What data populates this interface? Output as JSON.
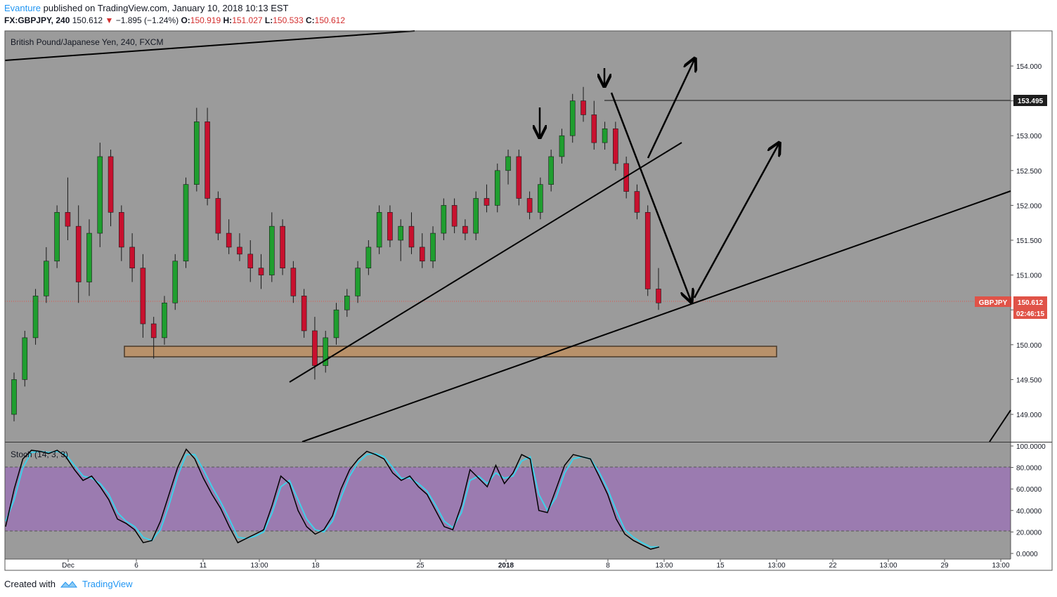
{
  "header": {
    "author": "Evanture",
    "published_text": " published on TradingView.com, January 10, 2018 10:13 EST",
    "symbol": "FX:GBPJPY, 240",
    "last": "150.612",
    "change_arrow": "▼",
    "change": "−1.895 (−1.24%)",
    "o_label": "O:",
    "o_value": "150.919",
    "h_label": "H:",
    "h_value": "151.027",
    "l_label": "L:",
    "l_value": "150.533",
    "c_label": "C:",
    "c_value": "150.612"
  },
  "footer": {
    "created_with": "Created with",
    "brand": "TradingView"
  },
  "colors": {
    "background": "#9b9b9b",
    "up": "#1f9e2f",
    "down": "#c8102e",
    "stoch_band": "#9b7bb0",
    "stoch_k": "#000000",
    "stoch_d": "#3fd0e8",
    "support_zone": "#b8916a",
    "price_tag": "#e05348"
  },
  "chart_data": [
    {
      "type": "candlestick",
      "title": "British Pound/Japanese Yen, 240, FXCM",
      "ylim": [
        148.6,
        154.5
      ],
      "y_ticks": [
        "154.000",
        "153.500",
        "153.000",
        "152.500",
        "152.000",
        "151.500",
        "151.000",
        "150.500",
        "150.000",
        "149.500",
        "149.000"
      ],
      "x_ticks": [
        "Dec",
        "6",
        "11",
        "13:00",
        "18",
        "25",
        "2018",
        "8",
        "13:00",
        "15",
        "13:00",
        "22",
        "13:00",
        "29",
        "13:00"
      ],
      "current_price_label": "GBPJPY",
      "current_price": "150.612",
      "countdown": "02:46:15",
      "horizontal_level": "153.495",
      "support_zone": [
        149.8,
        149.95
      ],
      "annotations": [
        "down arrows at swing highs",
        "rising trendlines",
        "projected path arrows"
      ],
      "candles_sampled": [
        [
          149.0,
          149.6,
          148.9,
          149.5
        ],
        [
          149.5,
          150.2,
          149.4,
          150.1
        ],
        [
          150.1,
          150.8,
          150.0,
          150.7
        ],
        [
          150.7,
          151.4,
          150.6,
          151.2
        ],
        [
          151.2,
          152.0,
          151.1,
          151.9
        ],
        [
          151.9,
          152.4,
          151.5,
          151.7
        ],
        [
          151.7,
          152.0,
          150.6,
          150.9
        ],
        [
          150.9,
          151.8,
          150.7,
          151.6
        ],
        [
          151.6,
          152.9,
          151.4,
          152.7
        ],
        [
          152.7,
          152.8,
          151.7,
          151.9
        ],
        [
          151.9,
          152.0,
          151.2,
          151.4
        ],
        [
          151.4,
          151.6,
          150.9,
          151.1
        ],
        [
          151.1,
          151.3,
          150.1,
          150.3
        ],
        [
          150.3,
          150.4,
          149.8,
          150.1
        ],
        [
          150.1,
          150.7,
          150.0,
          150.6
        ],
        [
          150.6,
          151.3,
          150.5,
          151.2
        ],
        [
          151.2,
          152.4,
          151.1,
          152.3
        ],
        [
          152.3,
          153.4,
          152.2,
          153.2
        ],
        [
          153.2,
          153.4,
          152.0,
          152.1
        ],
        [
          152.1,
          152.2,
          151.5,
          151.6
        ],
        [
          151.6,
          151.8,
          151.3,
          151.4
        ],
        [
          151.4,
          151.6,
          151.2,
          151.3
        ],
        [
          151.3,
          151.5,
          150.9,
          151.1
        ],
        [
          151.1,
          151.3,
          150.8,
          151.0
        ],
        [
          151.0,
          151.9,
          150.9,
          151.7
        ],
        [
          151.7,
          151.8,
          151.0,
          151.1
        ],
        [
          151.1,
          151.2,
          150.6,
          150.7
        ],
        [
          150.7,
          150.8,
          150.1,
          150.2
        ],
        [
          150.2,
          150.4,
          149.5,
          149.7
        ],
        [
          149.7,
          150.2,
          149.6,
          150.1
        ],
        [
          150.1,
          150.6,
          150.0,
          150.5
        ],
        [
          150.5,
          150.8,
          150.4,
          150.7
        ],
        [
          150.7,
          151.2,
          150.6,
          151.1
        ],
        [
          151.1,
          151.5,
          151.0,
          151.4
        ],
        [
          151.4,
          152.0,
          151.3,
          151.9
        ],
        [
          151.9,
          152.0,
          151.4,
          151.5
        ],
        [
          151.5,
          151.8,
          151.2,
          151.7
        ],
        [
          151.7,
          151.9,
          151.3,
          151.4
        ],
        [
          151.4,
          151.6,
          151.1,
          151.2
        ],
        [
          151.2,
          151.7,
          151.1,
          151.6
        ],
        [
          151.6,
          152.1,
          151.5,
          152.0
        ],
        [
          152.0,
          152.1,
          151.6,
          151.7
        ],
        [
          151.7,
          151.8,
          151.5,
          151.6
        ],
        [
          151.6,
          152.2,
          151.5,
          152.1
        ],
        [
          152.1,
          152.3,
          151.9,
          152.0
        ],
        [
          152.0,
          152.6,
          151.9,
          152.5
        ],
        [
          152.5,
          152.8,
          152.3,
          152.7
        ],
        [
          152.7,
          152.8,
          152.0,
          152.1
        ],
        [
          152.1,
          152.2,
          151.8,
          151.9
        ],
        [
          151.9,
          152.4,
          151.8,
          152.3
        ],
        [
          152.3,
          152.8,
          152.2,
          152.7
        ],
        [
          152.7,
          153.1,
          152.6,
          153.0
        ],
        [
          153.0,
          153.6,
          152.9,
          153.5
        ],
        [
          153.5,
          153.7,
          153.2,
          153.3
        ],
        [
          153.3,
          153.5,
          152.8,
          152.9
        ],
        [
          152.9,
          153.2,
          152.8,
          153.1
        ],
        [
          153.1,
          153.2,
          152.5,
          152.6
        ],
        [
          152.6,
          152.7,
          152.1,
          152.2
        ],
        [
          152.2,
          152.3,
          151.8,
          151.9
        ],
        [
          151.9,
          152.0,
          150.7,
          150.8
        ],
        [
          150.8,
          151.1,
          150.5,
          150.6
        ]
      ]
    },
    {
      "type": "line",
      "title": "Stoch (14, 3, 3)",
      "ylim": [
        0,
        100
      ],
      "y_ticks": [
        "100.0000",
        "80.0000",
        "60.0000",
        "40.0000",
        "20.0000",
        "0.0000"
      ],
      "band": [
        20,
        80
      ],
      "series": [
        {
          "name": "%K",
          "values": [
            25,
            60,
            88,
            96,
            95,
            93,
            96,
            90,
            78,
            68,
            72,
            62,
            50,
            32,
            28,
            22,
            10,
            12,
            30,
            55,
            80,
            97,
            88,
            70,
            55,
            42,
            25,
            10,
            14,
            18,
            22,
            45,
            72,
            65,
            40,
            25,
            18,
            22,
            35,
            60,
            78,
            88,
            95,
            92,
            88,
            75,
            68,
            72,
            62,
            55,
            40,
            25,
            22,
            45,
            78,
            70,
            62,
            82,
            65,
            75,
            92,
            88,
            40,
            38,
            60,
            82,
            92,
            90,
            88,
            72,
            55,
            32,
            18,
            12,
            8,
            4,
            6
          ]
        },
        {
          "name": "%D",
          "values": [
            30,
            50,
            80,
            94,
            95,
            94,
            95,
            92,
            82,
            72,
            70,
            65,
            55,
            38,
            30,
            25,
            15,
            12,
            22,
            45,
            72,
            92,
            92,
            78,
            62,
            48,
            32,
            15,
            14,
            16,
            20,
            38,
            62,
            68,
            50,
            32,
            22,
            20,
            30,
            52,
            72,
            85,
            92,
            93,
            90,
            80,
            70,
            70,
            65,
            58,
            45,
            30,
            24,
            38,
            68,
            72,
            65,
            75,
            70,
            72,
            86,
            90,
            55,
            40,
            52,
            75,
            88,
            90,
            88,
            76,
            60,
            40,
            22,
            15,
            10,
            6,
            6
          ]
        }
      ]
    }
  ]
}
